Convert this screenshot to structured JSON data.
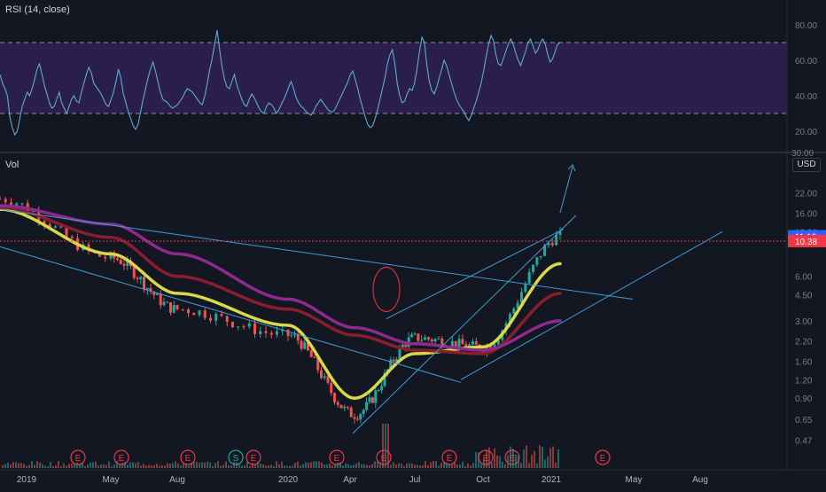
{
  "rsi_panel": {
    "title": "RSI (14, close)",
    "upper_band": 70,
    "lower_band": 30,
    "ticks": [
      "80.00",
      "60.00",
      "40.00",
      "20.00"
    ],
    "values": [
      52,
      47,
      44,
      40,
      28,
      22,
      18,
      20,
      27,
      34,
      38,
      42,
      40,
      44,
      49,
      55,
      58,
      52,
      46,
      41,
      36,
      33,
      34,
      38,
      42,
      36,
      33,
      30,
      34,
      38,
      40,
      37,
      36,
      42,
      47,
      52,
      56,
      53,
      47,
      45,
      43,
      41,
      38,
      35,
      34,
      38,
      42,
      48,
      55,
      50,
      41,
      36,
      31,
      27,
      23,
      21,
      24,
      31,
      38,
      44,
      50,
      55,
      59,
      54,
      48,
      42,
      38,
      37,
      36,
      34,
      33,
      34,
      35,
      37,
      39,
      42,
      44,
      43,
      42,
      40,
      38,
      36,
      35,
      40,
      47,
      55,
      61,
      69,
      77,
      66,
      56,
      49,
      45,
      44,
      48,
      52,
      46,
      42,
      38,
      35,
      34,
      38,
      41,
      39,
      36,
      33,
      31,
      30,
      34,
      36,
      35,
      33,
      30,
      32,
      35,
      38,
      41,
      45,
      48,
      44,
      39,
      36,
      34,
      33,
      31,
      30,
      29,
      31,
      34,
      36,
      38,
      36,
      34,
      32,
      31,
      31,
      33,
      36,
      39,
      42,
      45,
      48,
      52,
      54,
      49,
      44,
      38,
      33,
      28,
      24,
      22,
      23,
      27,
      32,
      38,
      44,
      50,
      58,
      63,
      66,
      58,
      47,
      40,
      36,
      37,
      41,
      44,
      43,
      47,
      55,
      65,
      73,
      70,
      57,
      48,
      43,
      41,
      45,
      50,
      55,
      60,
      57,
      52,
      47,
      42,
      38,
      35,
      33,
      31,
      28,
      26,
      29,
      33,
      37,
      42,
      47,
      54,
      62,
      69,
      74,
      71,
      63,
      58,
      57,
      61,
      65,
      69,
      72,
      69,
      64,
      60,
      57,
      61,
      65,
      70,
      72,
      68,
      64,
      66,
      70,
      72,
      69,
      63,
      59,
      61,
      65,
      69,
      70
    ],
    "color_line": "#5fa9d6",
    "band_fill": "#2a1e4a"
  },
  "price_panel": {
    "volume_label": "Vol",
    "currency": "USD",
    "axis_ticks": [
      "22.00",
      "16.00",
      "12.00",
      "6.00",
      "4.50",
      "3.00",
      "2.20",
      "1.60",
      "1.20",
      "0.90",
      "0.65",
      "0.47"
    ],
    "price_tags": [
      {
        "label": "11.19",
        "color": "#2962ff"
      },
      {
        "label": "10.38",
        "color": "#f23645"
      }
    ],
    "rsi_bottom_tick": "30.00"
  },
  "x_axis": {
    "labels": [
      "2019",
      "May",
      "Aug",
      "2020",
      "Apr",
      "Jul",
      "Oct",
      "2021",
      "May",
      "Aug"
    ]
  },
  "earnings_markers": [
    "E",
    "E",
    "E",
    "S",
    "E",
    "E",
    "E",
    "E",
    "E",
    "E",
    "E"
  ],
  "chart_data": {
    "type": "line",
    "title": "",
    "xlabel": "",
    "ylabel": "",
    "y_scale": "log",
    "ylim": [
      0.4,
      28
    ],
    "x": [
      "2019",
      "May",
      "Aug",
      "2020",
      "Apr",
      "Jul",
      "Oct",
      "2021"
    ],
    "series": [
      {
        "values": [
          20.0,
          8.0,
          3.6,
          2.4,
          0.7,
          2.3,
          2.0,
          11.19
        ]
      },
      {
        "values": [
          17.0,
          8.5,
          4.6,
          2.8,
          0.9,
          1.8,
          2.0,
          7.3
        ]
      },
      {
        "values": [
          17.5,
          11.0,
          6.0,
          3.6,
          2.4,
          1.9,
          1.8,
          4.6
        ]
      },
      {
        "values": [
          18.0,
          13.5,
          8.5,
          4.2,
          2.7,
          2.1,
          1.9,
          3.0
        ]
      }
    ],
    "series_colors": [
      "#26a69a",
      "#d8d84a",
      "#8b1e2e",
      "#8e2a8e"
    ],
    "candle_up": "#26a69a",
    "candle_down": "#ef5350",
    "trendline_color": "#3d9bd9",
    "grid": false
  }
}
